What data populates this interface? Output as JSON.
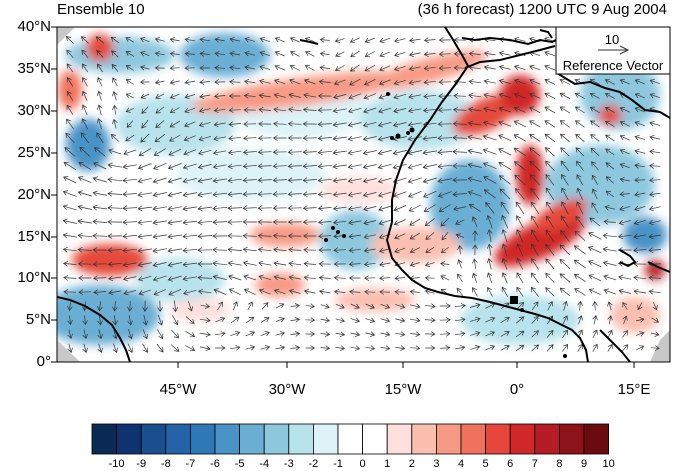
{
  "header": {
    "left_title": "Ensemble 10",
    "right_title": "(36 h forecast) 1200 UTC 9 Aug 2004"
  },
  "map": {
    "lat_labels": [
      "40°N",
      "35°N",
      "30°N",
      "25°N",
      "20°N",
      "15°N",
      "10°N",
      "5°N",
      "0°"
    ],
    "lon_labels": [
      "45°W",
      "30°W",
      "15°W",
      "0°",
      "15°E"
    ],
    "reference_vector": {
      "magnitude": "10",
      "label": "Reference Vector"
    }
  },
  "colorbar": {
    "labels": [
      "-10",
      "-9",
      "-8",
      "-7",
      "-6",
      "-5",
      "-4",
      "-3",
      "-2",
      "-1",
      "0",
      "1",
      "2",
      "3",
      "4",
      "5",
      "6",
      "7",
      "8",
      "9",
      "10"
    ],
    "colors": [
      "#0a2a55",
      "#0d3470",
      "#1a4f8f",
      "#2563a8",
      "#2f78b8",
      "#4a93c6",
      "#6aaed4",
      "#8ec8de",
      "#b8e2ec",
      "#ddf3f8",
      "#ffffff",
      "#ffffff",
      "#fde0dd",
      "#fbbfb0",
      "#f79a85",
      "#f0715c",
      "#e5483a",
      "#d02828",
      "#b51c23",
      "#8e1318",
      "#6a0b0f"
    ]
  },
  "colors": {
    "coast": "#000000",
    "vector": "#333333",
    "land_mask": "#c8c8c8"
  }
}
